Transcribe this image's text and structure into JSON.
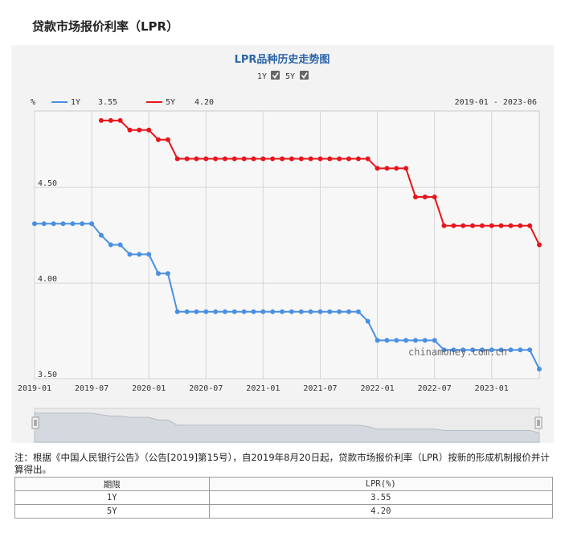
{
  "page": {
    "title": "贷款市场报价利率（LPR）"
  },
  "chart_data": {
    "type": "line",
    "title": "LPR品种历史走势图",
    "ylabel": "%",
    "date_range": "2019-01 - 2023-06",
    "toggles": [
      {
        "label": "1Y",
        "checked": true
      },
      {
        "label": "5Y",
        "checked": true
      }
    ],
    "ylim": [
      3.5,
      4.9
    ],
    "yticks": [
      "4.50",
      "4.00",
      "3.50"
    ],
    "xticks": [
      "2019-01",
      "2019-07",
      "2020-01",
      "2020-07",
      "2021-01",
      "2021-07",
      "2022-01",
      "2022-07",
      "2023-01"
    ],
    "x": [
      "2019-01",
      "2019-02",
      "2019-03",
      "2019-04",
      "2019-05",
      "2019-06",
      "2019-07",
      "2019-08",
      "2019-09",
      "2019-10",
      "2019-11",
      "2019-12",
      "2020-01",
      "2020-02",
      "2020-03",
      "2020-04",
      "2020-05",
      "2020-06",
      "2020-07",
      "2020-08",
      "2020-09",
      "2020-10",
      "2020-11",
      "2020-12",
      "2021-01",
      "2021-02",
      "2021-03",
      "2021-04",
      "2021-05",
      "2021-06",
      "2021-07",
      "2021-08",
      "2021-09",
      "2021-10",
      "2021-11",
      "2021-12",
      "2022-01",
      "2022-02",
      "2022-03",
      "2022-04",
      "2022-05",
      "2022-06",
      "2022-07",
      "2022-08",
      "2022-09",
      "2022-10",
      "2022-11",
      "2022-12",
      "2023-01",
      "2023-02",
      "2023-03",
      "2023-04",
      "2023-05",
      "2023-06"
    ],
    "series": [
      {
        "name": "1Y",
        "latest": "3.55",
        "color": "#4a90e2",
        "values": [
          4.31,
          4.31,
          4.31,
          4.31,
          4.31,
          4.31,
          4.31,
          4.25,
          4.2,
          4.2,
          4.15,
          4.15,
          4.15,
          4.05,
          4.05,
          3.85,
          3.85,
          3.85,
          3.85,
          3.85,
          3.85,
          3.85,
          3.85,
          3.85,
          3.85,
          3.85,
          3.85,
          3.85,
          3.85,
          3.85,
          3.85,
          3.85,
          3.85,
          3.85,
          3.85,
          3.8,
          3.7,
          3.7,
          3.7,
          3.7,
          3.7,
          3.7,
          3.7,
          3.65,
          3.65,
          3.65,
          3.65,
          3.65,
          3.65,
          3.65,
          3.65,
          3.65,
          3.65,
          3.55
        ]
      },
      {
        "name": "5Y",
        "latest": "4.20",
        "color": "#e8151b",
        "values": [
          null,
          null,
          null,
          null,
          null,
          null,
          null,
          4.85,
          4.85,
          4.85,
          4.8,
          4.8,
          4.8,
          4.75,
          4.75,
          4.65,
          4.65,
          4.65,
          4.65,
          4.65,
          4.65,
          4.65,
          4.65,
          4.65,
          4.65,
          4.65,
          4.65,
          4.65,
          4.65,
          4.65,
          4.65,
          4.65,
          4.65,
          4.65,
          4.65,
          4.65,
          4.6,
          4.6,
          4.6,
          4.6,
          4.45,
          4.45,
          4.45,
          4.3,
          4.3,
          4.3,
          4.3,
          4.3,
          4.3,
          4.3,
          4.3,
          4.3,
          4.3,
          4.2
        ]
      }
    ],
    "watermark": "chinamoney.com.cn",
    "grid": true,
    "legend": "top-left"
  },
  "note": "注：根据《中国人民银行公告》（公告[2019]第15号），自2019年8月20日起，贷款市场报价利率（LPR）按新的形成机制报价并计算得出。",
  "table": {
    "headers": [
      "期限",
      "LPR(%)"
    ],
    "rows": [
      [
        "1Y",
        "3.55"
      ],
      [
        "5Y",
        "4.20"
      ]
    ]
  }
}
